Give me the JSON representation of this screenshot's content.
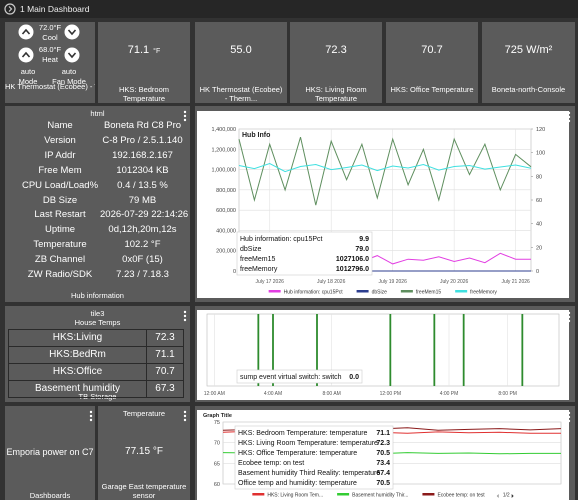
{
  "header": {
    "title": "1 Main Dashboard"
  },
  "thermostat": {
    "cool_setpoint": "72.0°F",
    "cool_label": "Cool",
    "heat_setpoint": "68.0°F",
    "heat_label": "Heat",
    "mode": "auto",
    "mode_label": "Mode",
    "fan_mode": "auto",
    "fan_mode_label": "Fan Mode",
    "name": "HK Thermostat (Ecobee) - Therm..."
  },
  "top_tiles": [
    {
      "value": "71.1",
      "unit": "°F",
      "label": "HKS: Bedroom Temperature"
    },
    {
      "value": "55.0",
      "label": "HK Thermostat (Ecobee) - Therm..."
    },
    {
      "value": "72.3",
      "label": "HKS: Living Room Temperature"
    },
    {
      "value": "70.7",
      "label": "HKS: Office Temperature"
    },
    {
      "value": "725 W/m²",
      "label": "Boneta-north-Console"
    }
  ],
  "hub_info": {
    "header": "html",
    "rows": [
      [
        "Name",
        "Boneta Rd C8 Pro"
      ],
      [
        "Version",
        "C-8 Pro / 2.5.1.140"
      ],
      [
        "IP Addr",
        "192.168.2.167"
      ],
      [
        "Free Mem",
        "1012304 KB"
      ],
      [
        "CPU Load/Load%",
        "0.4 / 13.5 %"
      ],
      [
        "DB Size",
        "79 MB"
      ],
      [
        "Last Restart",
        "2026-07-29 22:14:26"
      ],
      [
        "Uptime",
        "0d,12h,20m,12s"
      ],
      [
        "Temperature",
        "102.2 °F"
      ],
      [
        "ZB Channel",
        "0x0F (15)"
      ],
      [
        "ZW Radio/SDK",
        "7.23 / 7.18.3"
      ]
    ],
    "footer": "Hub information"
  },
  "house_temps": {
    "header": "tile3",
    "title": "House Temps",
    "rows": [
      [
        "HKS:Living",
        "72.3"
      ],
      [
        "HKS:BedRm",
        "71.1"
      ],
      [
        "HKS:Office",
        "70.7"
      ],
      [
        "Basement humidity",
        "67.3"
      ]
    ],
    "footer": "TB Storage"
  },
  "emporia": {
    "label": "Emporia power on C7",
    "footer": "Dashboards"
  },
  "garage": {
    "header": "Temperature",
    "value": "77.15 °F",
    "label": "Garage East temperature sensor"
  },
  "chart_data": [
    {
      "type": "line",
      "title": "Hub Info",
      "categories": [
        null,
        null,
        "July 17 2026",
        null,
        null,
        null,
        "July 18 2026",
        null,
        null,
        null,
        "July 19 2026",
        null,
        null,
        null,
        "July 20 2026",
        null,
        null,
        null,
        "July 21 2026",
        null
      ],
      "ylim": [
        0,
        1400000
      ],
      "yticks": [
        0,
        {
          "value": 200000,
          "label": "200,000"
        },
        {
          "value": 400000,
          "label": "400,000"
        },
        {
          "value": 600000,
          "label": "600,000"
        },
        {
          "value": 800000,
          "label": "800,000"
        },
        {
          "value": 1000000,
          "label": "1,000,000"
        },
        {
          "value": 1200000,
          "label": "1,200,000"
        },
        {
          "value": 1400000,
          "label": "1,400,000"
        }
      ],
      "y2lim": [
        0,
        120
      ],
      "y2ticks": [
        0,
        20,
        40,
        60,
        80,
        100,
        120
      ],
      "grid": true,
      "series": [
        {
          "name": "Hub information: cpu15Pct",
          "color": "#e23ee2",
          "axis": "y2",
          "values": [
            8,
            12,
            6,
            10,
            9,
            14,
            7,
            11,
            8,
            13,
            6,
            10,
            9,
            12,
            8,
            11,
            7,
            15,
            10,
            9.9
          ]
        },
        {
          "name": "dbSize",
          "color": "#2c3e8f",
          "values": [
            79,
            79,
            79,
            79,
            79,
            79,
            79,
            79,
            79,
            79,
            79,
            79,
            79,
            79,
            79,
            79,
            79,
            79,
            79,
            79
          ]
        },
        {
          "name": "freeMem15",
          "color": "#5f8f5f",
          "values": [
            1300000,
            700000,
            1250000,
            800000,
            1320000,
            650000,
            1280000,
            900000,
            1250000,
            720000,
            1300000,
            850000,
            1200000,
            700000,
            1300000,
            950000,
            1250000,
            800000,
            1150000,
            1027106
          ]
        },
        {
          "name": "freeMemory",
          "color": "#3fe0e0",
          "values": [
            1040000,
            1010000,
            1060000,
            980000,
            1030000,
            1050000,
            1000000,
            1020000,
            1045000,
            990000,
            1035000,
            1015000,
            1050000,
            995000,
            1030000,
            1040000,
            1005000,
            1025000,
            1045000,
            1012796
          ]
        }
      ],
      "tooltip": [
        {
          "label": "Hub information: cpu15Pct",
          "value": "9.9"
        },
        {
          "label": "dbSize",
          "value": "79.0"
        },
        {
          "label": "freeMem15",
          "value": "1027106.0"
        },
        {
          "label": "freeMemory",
          "value": "1012796.0"
        }
      ]
    },
    {
      "type": "bar",
      "categories": [
        "12:00 AM",
        null,
        null,
        null,
        "4:00 AM",
        null,
        null,
        null,
        "8:00 AM",
        null,
        null,
        null,
        "12:00 PM",
        null,
        null,
        null,
        "4:00 PM",
        null,
        null,
        null,
        "8:00 PM",
        null,
        null,
        null
      ],
      "ylim": [
        0,
        1
      ],
      "grid": true,
      "series": [
        {
          "color": "#2e8b2e",
          "values": [
            0,
            0,
            0,
            1,
            1,
            0,
            0,
            1,
            0,
            0,
            0,
            0,
            1,
            0,
            0,
            1,
            0,
            1,
            0,
            0,
            0,
            1,
            0,
            0
          ]
        }
      ],
      "tooltip": [
        {
          "label": "sump event virtual switch: switch",
          "value": "0.0"
        }
      ]
    },
    {
      "type": "line",
      "title": "Graph Title",
      "categories": [
        null,
        null,
        null,
        null,
        null,
        null,
        null,
        null,
        null,
        null,
        null,
        null
      ],
      "ylim": [
        60,
        75
      ],
      "yticks": [
        60,
        65,
        70,
        75
      ],
      "grid": true,
      "series": [
        {
          "name": "HKS: Living Room Tem...",
          "color": "#e03030",
          "values": [
            72.5,
            72.8,
            72.6,
            72.4,
            72.7,
            72.5,
            72.3,
            72.6,
            72.4,
            72.5,
            72.3,
            72.3
          ]
        },
        {
          "name": "Basement humidity Thir...",
          "color": "#33cc33",
          "values": [
            67.6,
            67.5,
            67.7,
            67.4,
            67.5,
            67.3,
            67.6,
            67.4,
            67.5,
            67.3,
            67.4,
            67.4
          ]
        },
        {
          "name": "Ecobee temp: on test",
          "color": "#8b1a1a",
          "values": [
            73.0,
            73.2,
            73.5,
            73.1,
            72.8,
            73.3,
            73.6,
            73.0,
            73.2,
            73.4,
            73.1,
            73.4
          ]
        }
      ],
      "legend_page": "1/2",
      "tooltip": [
        {
          "label": "HKS: Bedroom Temperature: temperature",
          "value": "71.1"
        },
        {
          "label": "HKS: Living Room Temperature: temperature",
          "value": "72.3"
        },
        {
          "label": "HKS: Office Temperature: temperature",
          "value": "70.5"
        },
        {
          "label": "Ecobee temp: on test",
          "value": "73.4"
        },
        {
          "label": "Basement humidity Third Reality: temperature",
          "value": "67.4"
        },
        {
          "label": "Office temp and humidity: temperature",
          "value": "70.5"
        }
      ]
    }
  ]
}
